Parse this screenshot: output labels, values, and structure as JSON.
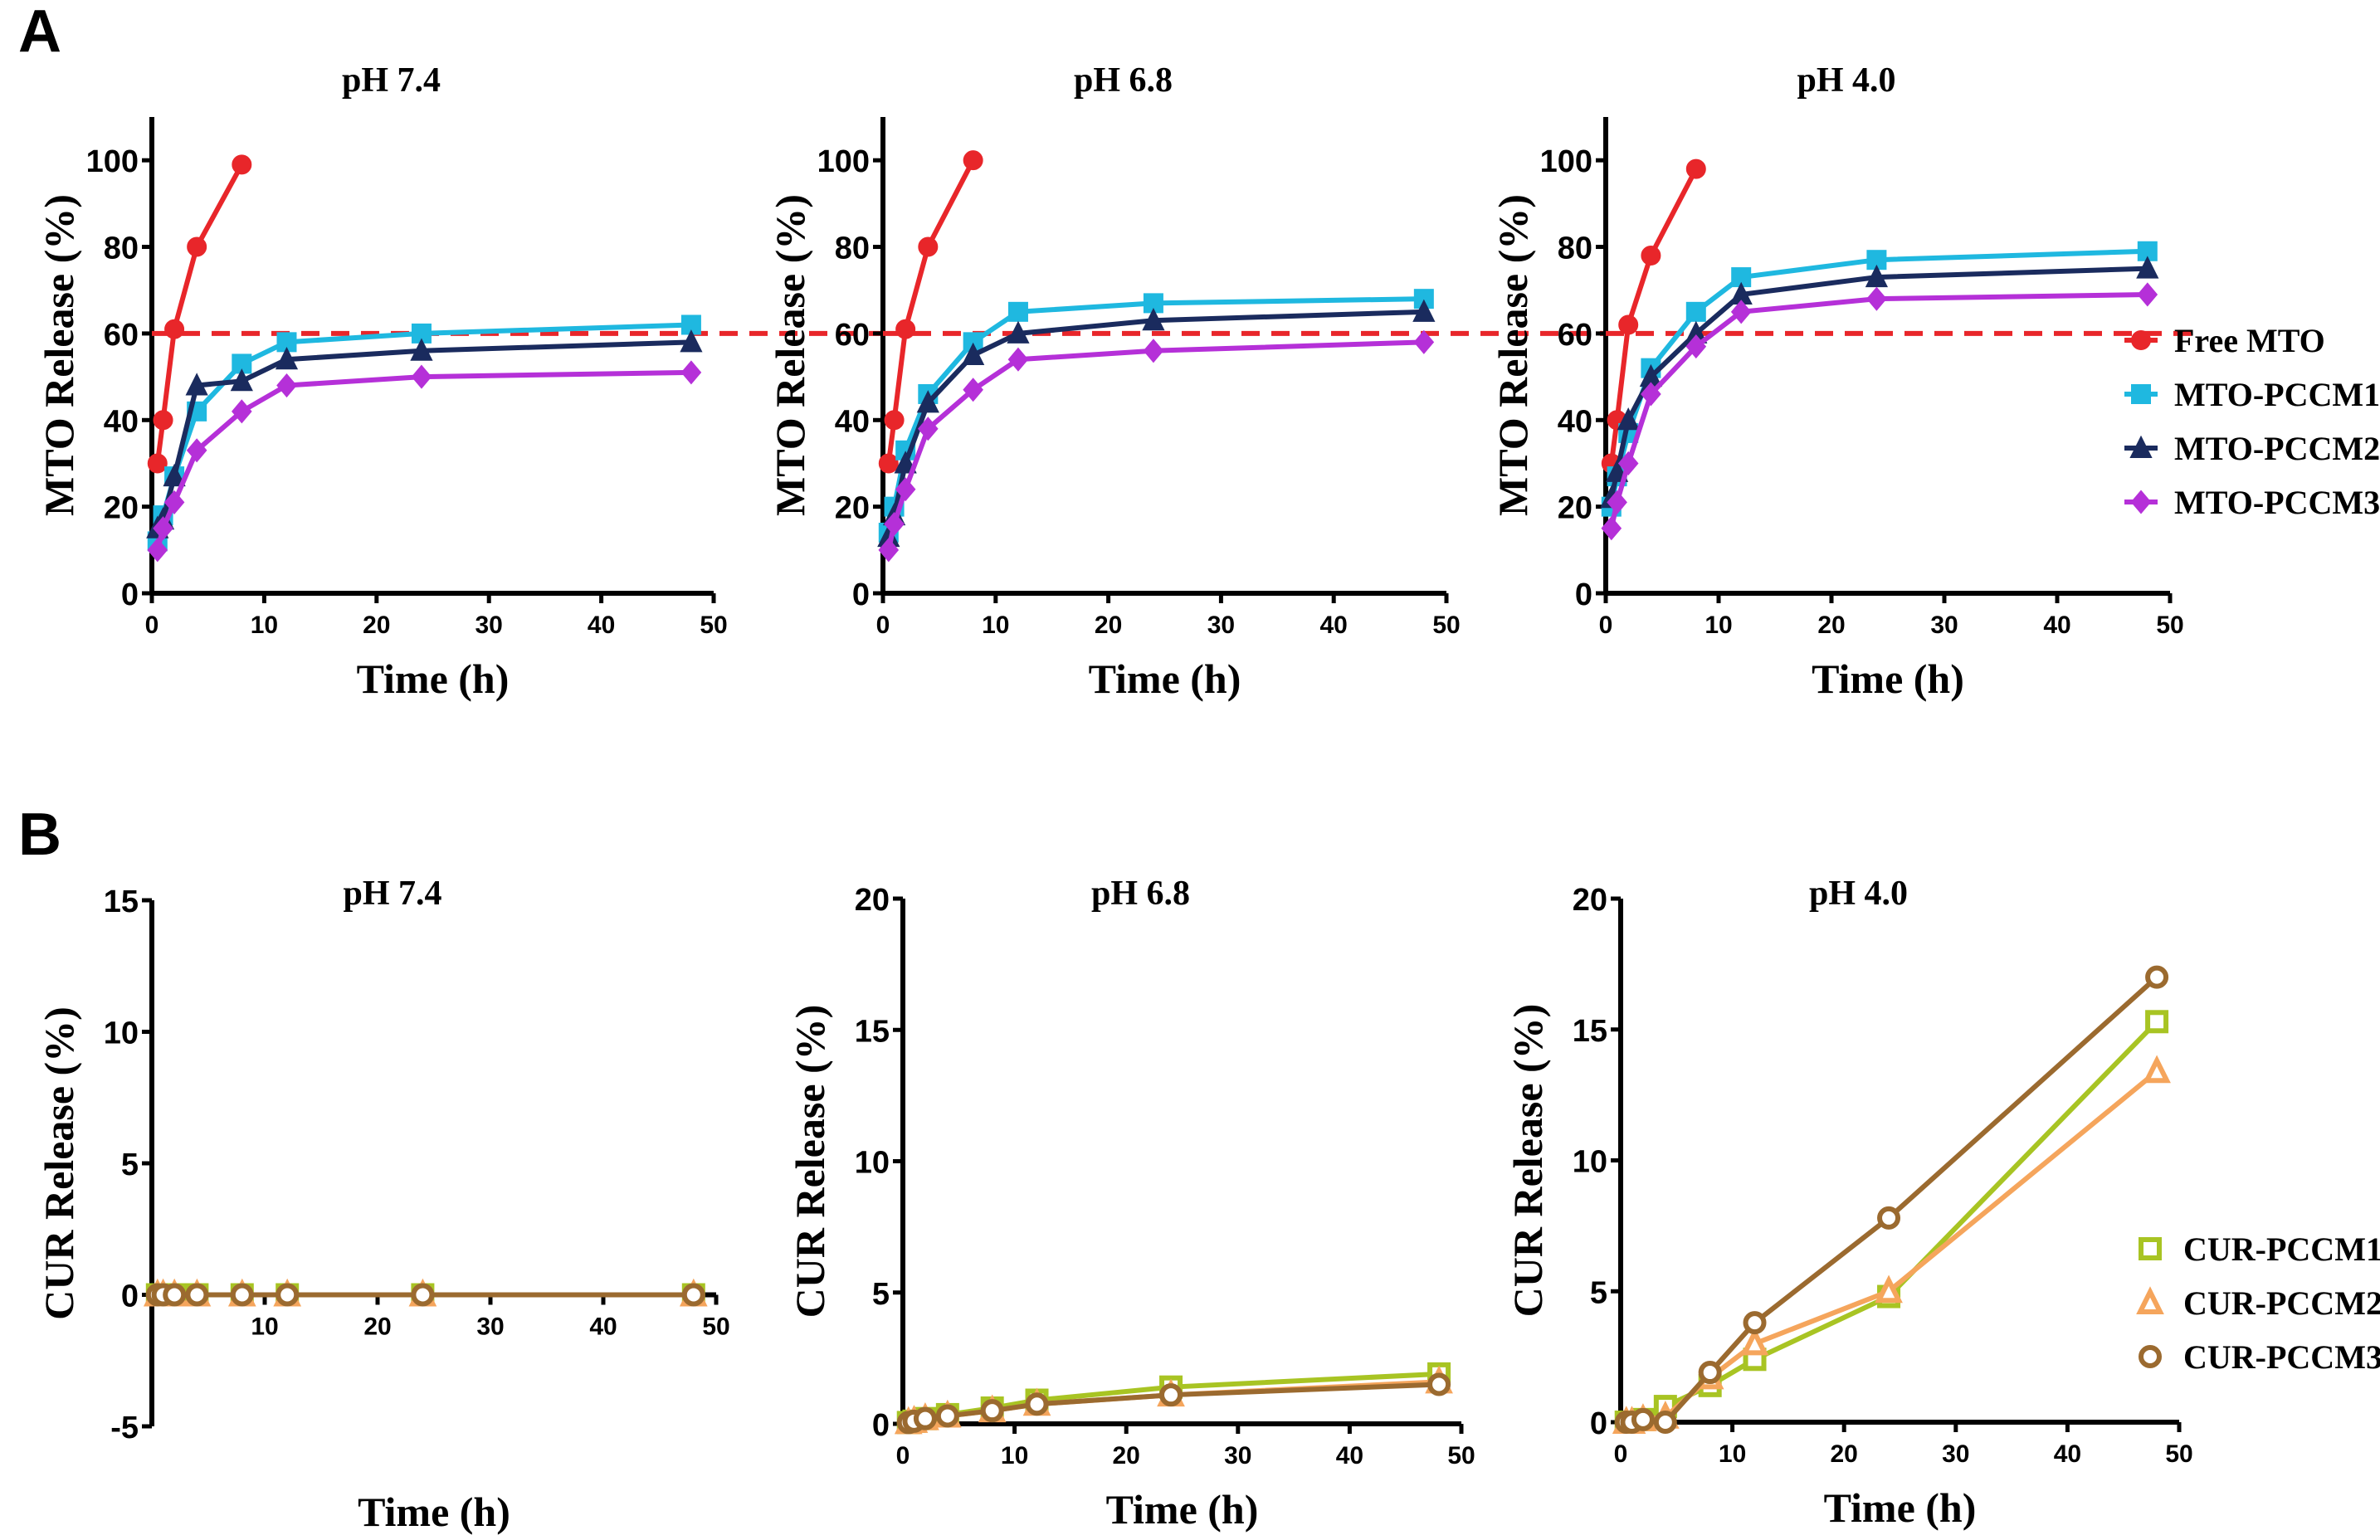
{
  "panel_labels": [
    "A",
    "B"
  ],
  "chart_data": [
    {
      "type": "line",
      "title": "pH 7.4",
      "xlabel": "Time (h)",
      "ylabel": "MTO Release (%)",
      "xlim": [
        0,
        50
      ],
      "ylim": [
        0,
        110
      ],
      "xticks": [
        0,
        10,
        20,
        30,
        40,
        50
      ],
      "yticks": [
        0,
        20,
        40,
        60,
        80,
        100
      ],
      "reference_line": {
        "y": 60,
        "color": "#e8262a",
        "style": "dashed"
      },
      "series": [
        {
          "name": "Free MTO",
          "color": "#e8262a",
          "marker": "circle-filled",
          "x": [
            0.5,
            1,
            2,
            4,
            8
          ],
          "y": [
            30,
            40,
            61,
            80,
            99
          ]
        },
        {
          "name": "MTO-PCCM1",
          "color": "#1fb8e0",
          "marker": "square-filled",
          "x": [
            0.5,
            1,
            2,
            4,
            8,
            12,
            24,
            48
          ],
          "y": [
            12,
            18,
            27,
            42,
            53,
            58,
            60,
            62
          ]
        },
        {
          "name": "MTO-PCCM2",
          "color": "#1a2b5e",
          "marker": "triangle-filled",
          "x": [
            0.5,
            1,
            2,
            4,
            8,
            12,
            24,
            48
          ],
          "y": [
            15,
            17,
            27,
            48,
            49,
            54,
            56,
            58
          ]
        },
        {
          "name": "MTO-PCCM3",
          "color": "#b530d8",
          "marker": "diamond-filled",
          "x": [
            0.5,
            1,
            2,
            4,
            8,
            12,
            24,
            48
          ],
          "y": [
            10,
            15,
            21,
            33,
            42,
            48,
            50,
            51
          ]
        }
      ]
    },
    {
      "type": "line",
      "title": "pH 6.8",
      "xlabel": "Time (h)",
      "ylabel": "MTO Release (%)",
      "xlim": [
        0,
        50
      ],
      "ylim": [
        0,
        110
      ],
      "xticks": [
        0,
        10,
        20,
        30,
        40,
        50
      ],
      "yticks": [
        0,
        20,
        40,
        60,
        80,
        100
      ],
      "reference_line": {
        "y": 60,
        "color": "#e8262a",
        "style": "dashed"
      },
      "series": [
        {
          "name": "Free MTO",
          "color": "#e8262a",
          "marker": "circle-filled",
          "x": [
            0.5,
            1,
            2,
            4,
            8
          ],
          "y": [
            30,
            40,
            61,
            80,
            100
          ]
        },
        {
          "name": "MTO-PCCM1",
          "color": "#1fb8e0",
          "marker": "square-filled",
          "x": [
            0.5,
            1,
            2,
            4,
            8,
            12,
            24,
            48
          ],
          "y": [
            14,
            20,
            33,
            46,
            58,
            65,
            67,
            68
          ]
        },
        {
          "name": "MTO-PCCM2",
          "color": "#1a2b5e",
          "marker": "triangle-filled",
          "x": [
            0.5,
            1,
            2,
            4,
            8,
            12,
            24,
            48
          ],
          "y": [
            13,
            18,
            30,
            44,
            55,
            60,
            63,
            65
          ]
        },
        {
          "name": "MTO-PCCM3",
          "color": "#b530d8",
          "marker": "diamond-filled",
          "x": [
            0.5,
            1,
            2,
            4,
            8,
            12,
            24,
            48
          ],
          "y": [
            10,
            16,
            24,
            38,
            47,
            54,
            56,
            58
          ]
        }
      ]
    },
    {
      "type": "line",
      "title": "pH 4.0",
      "xlabel": "Time (h)",
      "ylabel": "MTO Release (%)",
      "xlim": [
        0,
        50
      ],
      "ylim": [
        0,
        110
      ],
      "xticks": [
        0,
        10,
        20,
        30,
        40,
        50
      ],
      "yticks": [
        0,
        20,
        40,
        60,
        80,
        100
      ],
      "reference_line": {
        "y": 60,
        "color": "#e8262a",
        "style": "dashed"
      },
      "legend": "right",
      "series": [
        {
          "name": "Free MTO",
          "color": "#e8262a",
          "marker": "circle-filled",
          "x": [
            0.5,
            1,
            2,
            4,
            8
          ],
          "y": [
            30,
            40,
            62,
            78,
            98
          ]
        },
        {
          "name": "MTO-PCCM1",
          "color": "#1fb8e0",
          "marker": "square-filled",
          "x": [
            0.5,
            1,
            2,
            4,
            8,
            12,
            24,
            48
          ],
          "y": [
            20,
            27,
            37,
            52,
            65,
            73,
            77,
            79
          ]
        },
        {
          "name": "MTO-PCCM2",
          "color": "#1a2b5e",
          "marker": "triangle-filled",
          "x": [
            0.5,
            1,
            2,
            4,
            8,
            12,
            24,
            48
          ],
          "y": [
            22,
            28,
            40,
            50,
            60,
            69,
            73,
            75
          ]
        },
        {
          "name": "MTO-PCCM3",
          "color": "#b530d8",
          "marker": "diamond-filled",
          "x": [
            0.5,
            1,
            2,
            4,
            8,
            12,
            24,
            48
          ],
          "y": [
            15,
            21,
            30,
            46,
            57,
            65,
            68,
            69
          ]
        }
      ]
    },
    {
      "type": "line",
      "title": "pH 7.4",
      "xlabel": "Time (h)",
      "ylabel": "CUR Release (%)",
      "xlim": [
        0,
        50
      ],
      "ylim": [
        -5,
        15
      ],
      "xticks": [
        10,
        20,
        30,
        40,
        50
      ],
      "yticks": [
        -5,
        0,
        5,
        10,
        15
      ],
      "series": [
        {
          "name": "CUR-PCCM1",
          "color": "#a8c423",
          "marker": "square-open",
          "x": [
            0.5,
            1,
            2,
            4,
            8,
            12,
            24,
            48
          ],
          "y": [
            0,
            0,
            0,
            0,
            0,
            0,
            0,
            0
          ]
        },
        {
          "name": "CUR-PCCM2",
          "color": "#f5a55c",
          "marker": "triangle-open",
          "x": [
            0.5,
            1,
            2,
            4,
            8,
            12,
            24,
            48
          ],
          "y": [
            0,
            0,
            0,
            0,
            0,
            0,
            0,
            0
          ]
        },
        {
          "name": "CUR-PCCM3",
          "color": "#9b6a2f",
          "marker": "circle-open",
          "x": [
            0.5,
            1,
            2,
            4,
            8,
            12,
            24,
            48
          ],
          "y": [
            0,
            0,
            0,
            0,
            0,
            0,
            0,
            0
          ]
        }
      ]
    },
    {
      "type": "line",
      "title": "pH 6.8",
      "xlabel": "Time (h)",
      "ylabel": "CUR Release (%)",
      "xlim": [
        0,
        50
      ],
      "ylim": [
        0,
        20
      ],
      "xticks": [
        0,
        10,
        20,
        30,
        40,
        50
      ],
      "yticks": [
        0,
        5,
        10,
        15,
        20
      ],
      "series": [
        {
          "name": "CUR-PCCM1",
          "color": "#a8c423",
          "marker": "square-open",
          "x": [
            0.5,
            1,
            2,
            4,
            8,
            12,
            24,
            48
          ],
          "y": [
            0.05,
            0.1,
            0.2,
            0.35,
            0.6,
            0.9,
            1.4,
            1.9
          ]
        },
        {
          "name": "CUR-PCCM2",
          "color": "#f5a55c",
          "marker": "triangle-open",
          "x": [
            0.5,
            1,
            2,
            4,
            8,
            12,
            24,
            48
          ],
          "y": [
            0.05,
            0.1,
            0.2,
            0.3,
            0.5,
            0.75,
            1.1,
            1.6
          ]
        },
        {
          "name": "CUR-PCCM3",
          "color": "#9b6a2f",
          "marker": "circle-open",
          "x": [
            0.5,
            1,
            2,
            4,
            8,
            12,
            24,
            48
          ],
          "y": [
            0.05,
            0.1,
            0.2,
            0.3,
            0.5,
            0.75,
            1.1,
            1.5
          ]
        }
      ]
    },
    {
      "type": "line",
      "title": "pH 4.0",
      "xlabel": "Time (h)",
      "ylabel": "CUR Release (%)",
      "xlim": [
        0,
        50
      ],
      "ylim": [
        0,
        20
      ],
      "xticks": [
        0,
        10,
        20,
        30,
        40,
        50
      ],
      "yticks": [
        0,
        5,
        10,
        15,
        20
      ],
      "legend": "right",
      "series": [
        {
          "name": "CUR-PCCM1",
          "color": "#a8c423",
          "marker": "square-open",
          "x": [
            0.5,
            1,
            2,
            4,
            8,
            12,
            24,
            48
          ],
          "y": [
            0,
            0,
            0.1,
            0.6,
            1.4,
            2.4,
            4.8,
            15.3
          ]
        },
        {
          "name": "CUR-PCCM2",
          "color": "#f5a55c",
          "marker": "triangle-open",
          "x": [
            0.5,
            1,
            2,
            4,
            8,
            12,
            24,
            48
          ],
          "y": [
            0,
            0,
            0.1,
            0.2,
            1.7,
            3.0,
            5.0,
            13.4
          ]
        },
        {
          "name": "CUR-PCCM3",
          "color": "#9b6a2f",
          "marker": "circle-open",
          "x": [
            0.5,
            1,
            2,
            4,
            8,
            12,
            24,
            48
          ],
          "y": [
            0,
            0,
            0.1,
            0,
            1.9,
            3.8,
            7.8,
            17.0
          ]
        }
      ]
    }
  ]
}
